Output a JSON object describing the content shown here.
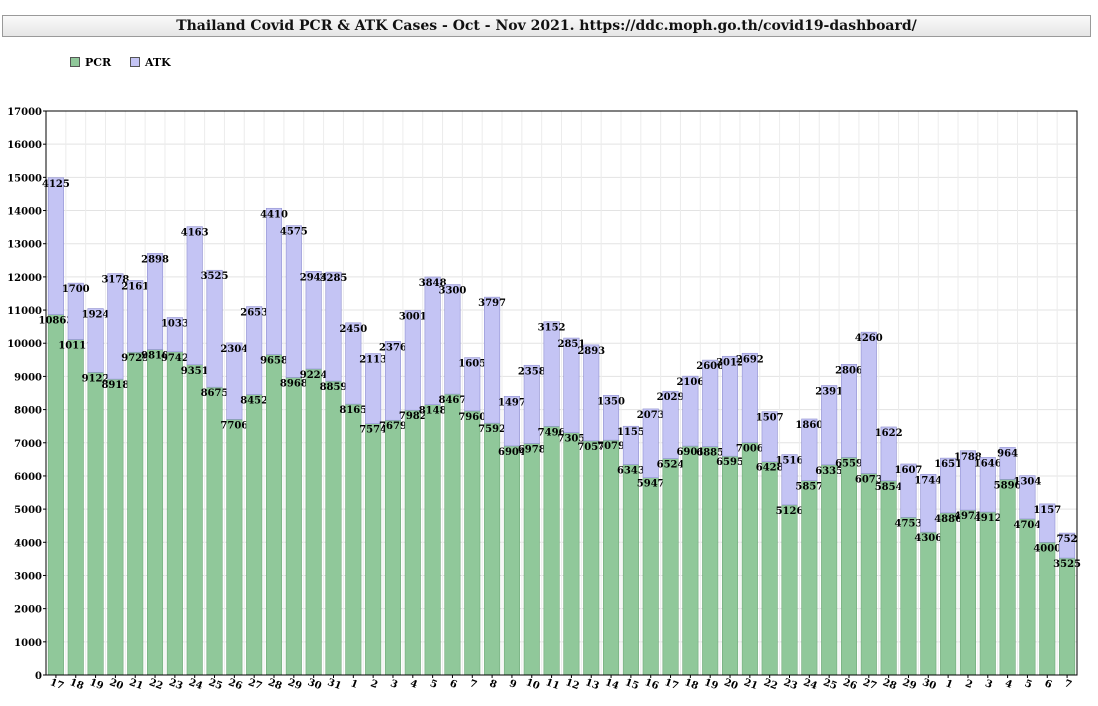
{
  "chart_data": {
    "type": "bar",
    "stacked": true,
    "title": "Thailand Covid PCR & ATK Cases - Oct - Nov 2021. https://ddc.moph.go.th/covid19-dashboard/",
    "xlabel": "",
    "ylabel": "",
    "ylim": [
      0,
      17000
    ],
    "yticks": [
      0,
      1000,
      2000,
      3000,
      4000,
      5000,
      6000,
      7000,
      8000,
      9000,
      10000,
      11000,
      12000,
      13000,
      14000,
      15000,
      16000,
      17000
    ],
    "grid": true,
    "legend_position": "top-left",
    "categories": [
      "17",
      "18",
      "19",
      "20",
      "21",
      "22",
      "23",
      "24",
      "25",
      "26",
      "27",
      "28",
      "29",
      "30",
      "31",
      "1",
      "2",
      "3",
      "4",
      "5",
      "6",
      "7",
      "8",
      "9",
      "10",
      "11",
      "12",
      "13",
      "14",
      "15",
      "16",
      "17",
      "18",
      "19",
      "20",
      "21",
      "22",
      "23",
      "24",
      "25",
      "26",
      "27",
      "28",
      "29",
      "30",
      "1",
      "2",
      "3",
      "4",
      "5",
      "6",
      "7"
    ],
    "series": [
      {
        "name": "PCR",
        "color": "#90c89a",
        "values": [
          10863,
          10111,
          9122,
          8918,
          9729,
          9810,
          9742,
          9351,
          8675,
          7706,
          8452,
          9658,
          8968,
          9224,
          8859,
          8165,
          7574,
          7679,
          7982,
          8148,
          8467,
          7960,
          7592,
          6904,
          6978,
          7496,
          7305,
          7057,
          7079,
          6343,
          5947,
          6524,
          6901,
          6885,
          6595,
          7006,
          6428,
          5126,
          5857,
          6335,
          6559,
          6073,
          5854,
          4753,
          4306,
          4886,
          4971,
          4912,
          5896,
          4704,
          4000,
          3525
        ]
      },
      {
        "name": "ATK",
        "color": "#c4c4f4",
        "values": [
          4125,
          1700,
          1924,
          3178,
          2161,
          2898,
          1033,
          4163,
          3525,
          2304,
          2653,
          4410,
          4575,
          2944,
          3285,
          2450,
          2113,
          2376,
          3001,
          3848,
          3300,
          1605,
          3797,
          1497,
          2358,
          3152,
          2851,
          2893,
          1350,
          1155,
          2073,
          2029,
          2106,
          2606,
          3012,
          2692,
          1507,
          1516,
          1860,
          2391,
          2806,
          4260,
          1622,
          1607,
          1744,
          1651,
          1788,
          1646,
          964,
          1304,
          1157,
          752
        ]
      }
    ]
  }
}
